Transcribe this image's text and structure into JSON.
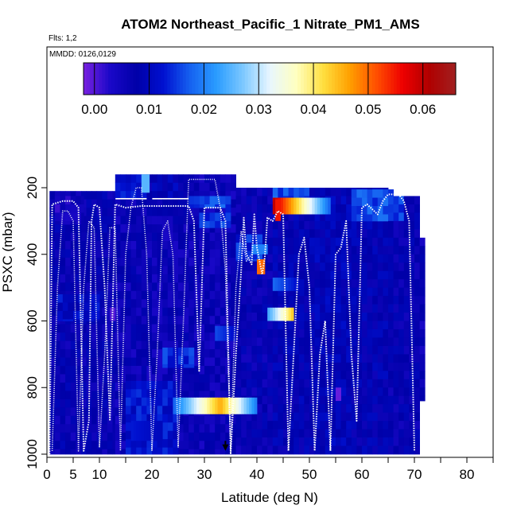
{
  "chart_data": {
    "type": "heatmap",
    "title": "ATOM2 Northeast_Pacific_1 Nitrate_PM1_AMS",
    "flights_label": "Flts: 1,2",
    "date_label": "MMDD: 0126,0129",
    "xlabel": "Latitude (deg N)",
    "ylabel": "PSXC (mbar)",
    "xlim": [
      0,
      85
    ],
    "ylim": [
      1000,
      0
    ],
    "x_ticks": [
      0,
      5,
      10,
      20,
      30,
      40,
      50,
      60,
      70,
      80
    ],
    "x_tick_labels": [
      "0",
      "5",
      "10",
      "20",
      "30",
      "40",
      "50",
      "60",
      "70",
      "80"
    ],
    "y_ticks": [
      200,
      400,
      600,
      800,
      1000
    ],
    "y_tick_labels": [
      "200",
      "400",
      "600",
      "800",
      "1000"
    ],
    "colorbar": {
      "range": [
        -0.002,
        0.066
      ],
      "ticks": [
        0.0,
        0.01,
        0.02,
        0.03,
        0.04,
        0.05,
        0.06
      ],
      "tick_labels": [
        "0.00",
        "0.01",
        "0.02",
        "0.03",
        "0.04",
        "0.05",
        "0.06"
      ],
      "stops": [
        "#7a22e0",
        "#1a08c8",
        "#0000a8",
        "#0010d0",
        "#1560f0",
        "#2a9cff",
        "#7cc8ff",
        "#e8f6ff",
        "#ffffc0",
        "#ffe040",
        "#ffa000",
        "#ff5000",
        "#ee0000",
        "#b00000",
        "#a02020"
      ]
    },
    "heatmap": {
      "x_bin": 1,
      "p_bin": 25,
      "background": 0.006,
      "columns": [
        {
          "x0": 0.5,
          "x1": 13,
          "p0": 210,
          "p1": 1000,
          "v": 0.007
        },
        {
          "x0": 1.5,
          "x1": 7,
          "p0": 225,
          "p1": 310,
          "v": 0.004
        },
        {
          "x0": 2,
          "x1": 10,
          "p0": 520,
          "p1": 600,
          "v": 0.011
        },
        {
          "x0": 13,
          "x1": 20,
          "p0": 160,
          "p1": 1000,
          "v": 0.006
        },
        {
          "x0": 13,
          "x1": 19,
          "p0": 160,
          "p1": 230,
          "v": 0.013
        },
        {
          "x0": 20,
          "x1": 29,
          "p0": 160,
          "p1": 1000,
          "v": 0.006
        },
        {
          "x0": 20,
          "x1": 27,
          "p0": 160,
          "p1": 230,
          "v": 0.009
        },
        {
          "x0": 15,
          "x1": 25,
          "p0": 780,
          "p1": 1000,
          "v": 0.012
        },
        {
          "x0": 22,
          "x1": 28,
          "p0": 680,
          "p1": 740,
          "v": 0.014
        },
        {
          "x0": 29,
          "x1": 36,
          "p0": 160,
          "p1": 1000,
          "v": 0.006
        },
        {
          "x0": 29,
          "x1": 35,
          "p0": 225,
          "p1": 320,
          "v": 0.014
        },
        {
          "x0": 27,
          "x1": 34,
          "p0": 225,
          "p1": 260,
          "v": 0.016
        },
        {
          "x0": 36,
          "x1": 43,
          "p0": 200,
          "p1": 1000,
          "v": 0.007
        },
        {
          "x0": 36,
          "x1": 41,
          "p0": 340,
          "p1": 420,
          "v": 0.014
        },
        {
          "x0": 43,
          "x1": 51,
          "p0": 200,
          "p1": 1000,
          "v": 0.008
        },
        {
          "x0": 43,
          "x1": 50,
          "p0": 200,
          "p1": 240,
          "v": 0.016
        },
        {
          "x0": 51,
          "x1": 58,
          "p0": 200,
          "p1": 1000,
          "v": 0.009
        },
        {
          "x0": 58,
          "x1": 65,
          "p0": 200,
          "p1": 1000,
          "v": 0.008
        },
        {
          "x0": 58,
          "x1": 66,
          "p0": 205,
          "p1": 300,
          "v": 0.016
        },
        {
          "x0": 65,
          "x1": 71,
          "p0": 225,
          "p1": 1000,
          "v": 0.007
        },
        {
          "x0": 65,
          "x1": 68,
          "p0": 225,
          "p1": 300,
          "v": 0.015
        },
        {
          "x0": 71,
          "x1": 72,
          "p0": 350,
          "p1": 840,
          "v": 0.006
        }
      ],
      "features": [
        {
          "x0": 43,
          "x1": 54,
          "p0": 230,
          "p1": 280,
          "v0": 0.06,
          "v1": 0.018
        },
        {
          "x0": 24,
          "x1": 33,
          "p0": 830,
          "p1": 880,
          "v0": 0.018,
          "v1": 0.045
        },
        {
          "x0": 33,
          "x1": 40,
          "p0": 830,
          "p1": 880,
          "v0": 0.045,
          "v1": 0.02
        },
        {
          "x0": 42,
          "x1": 47,
          "p0": 560,
          "p1": 600,
          "v0": 0.024,
          "v1": 0.043
        },
        {
          "x0": 40,
          "x1": 41.5,
          "p0": 415,
          "p1": 460,
          "v0": 0.05,
          "v1": 0.05
        },
        {
          "x0": 43.5,
          "x1": 44.5,
          "p0": 235,
          "p1": 300,
          "v0": 0.055,
          "v1": 0.055
        },
        {
          "x0": 43,
          "x1": 48,
          "p0": 470,
          "p1": 510,
          "v0": 0.018,
          "v1": 0.012
        },
        {
          "x0": 32,
          "x1": 36,
          "p0": 615,
          "p1": 660,
          "v0": 0.016,
          "v1": 0.012
        },
        {
          "x0": 39,
          "x1": 42,
          "p0": 370,
          "p1": 400,
          "v0": 0.02,
          "v1": 0.02
        },
        {
          "x0": 55,
          "x1": 56,
          "p0": 800,
          "p1": 840,
          "v0": -0.001,
          "v1": -0.001
        },
        {
          "x0": 12,
          "x1": 13,
          "p0": 560,
          "p1": 600,
          "v0": 0.0,
          "v1": 0.0
        },
        {
          "x0": 18,
          "x1": 19.5,
          "p0": 160,
          "p1": 215,
          "v0": 0.025,
          "v1": 0.025
        },
        {
          "x0": 16,
          "x1": 22,
          "p0": 900,
          "p1": 960,
          "v0": 0.013,
          "v1": 0.01
        }
      ]
    },
    "flight_tracks": [
      {
        "name": "flight-1",
        "points": [
          [
            0.5,
            1000
          ],
          [
            1,
            250
          ],
          [
            3,
            240
          ],
          [
            5,
            240
          ],
          [
            6,
            260
          ],
          [
            7,
            990
          ],
          [
            8,
            900
          ],
          [
            8.5,
            300
          ],
          [
            9,
            250
          ],
          [
            10,
            260
          ],
          [
            11,
            500
          ],
          [
            12,
            900
          ],
          [
            13,
            250
          ],
          [
            15,
            260
          ],
          [
            18,
            255
          ],
          [
            22,
            255
          ],
          [
            25,
            255
          ],
          [
            27,
            255
          ],
          [
            28,
            300
          ],
          [
            29,
            750
          ],
          [
            30,
            260
          ],
          [
            33,
            260
          ],
          [
            34,
            300
          ],
          [
            35,
            1000
          ],
          [
            36,
            700
          ],
          [
            37,
            450
          ],
          [
            37.5,
            290
          ],
          [
            38,
            400
          ],
          [
            39,
            430
          ],
          [
            39.5,
            280
          ],
          [
            40,
            380
          ],
          [
            41,
            460
          ],
          [
            41.5,
            410
          ],
          [
            42,
            290
          ],
          [
            43,
            300
          ],
          [
            44,
            270
          ],
          [
            45,
            280
          ],
          [
            46,
            990
          ],
          [
            47,
            700
          ],
          [
            48,
            400
          ],
          [
            49,
            350
          ],
          [
            50,
            500
          ],
          [
            51,
            990
          ],
          [
            52,
            700
          ],
          [
            53,
            600
          ],
          [
            54,
            990
          ],
          [
            55,
            400
          ],
          [
            56,
            380
          ],
          [
            57,
            300
          ],
          [
            58,
            700
          ],
          [
            59,
            900
          ],
          [
            60,
            260
          ],
          [
            61,
            250
          ],
          [
            63,
            280
          ],
          [
            64,
            240
          ],
          [
            65,
            220
          ],
          [
            67,
            220
          ],
          [
            68,
            240
          ],
          [
            69,
            300
          ],
          [
            70,
            990
          ]
        ]
      },
      {
        "name": "flight-2",
        "points": [
          [
            1,
            990
          ],
          [
            2,
            500
          ],
          [
            3,
            270
          ],
          [
            4,
            270
          ],
          [
            5,
            300
          ],
          [
            6,
            990
          ],
          [
            7,
            500
          ],
          [
            8,
            300
          ],
          [
            9,
            320
          ],
          [
            10,
            980
          ],
          [
            11,
            700
          ],
          [
            12,
            320
          ],
          [
            13,
            320
          ],
          [
            14,
            990
          ],
          [
            15,
            400
          ],
          [
            16,
            260
          ],
          [
            17,
            200
          ],
          [
            18,
            200
          ],
          [
            19,
            400
          ],
          [
            20,
            990
          ],
          [
            21,
            700
          ],
          [
            22,
            330
          ],
          [
            23,
            300
          ],
          [
            24,
            400
          ],
          [
            25,
            980
          ],
          [
            26,
            600
          ],
          [
            27,
            175
          ],
          [
            30,
            175
          ],
          [
            32,
            175
          ],
          [
            33,
            260
          ],
          [
            34,
            450
          ],
          [
            35,
            990
          ],
          [
            36,
            500
          ],
          [
            37,
            330
          ],
          [
            38,
            420
          ],
          [
            39,
            400
          ]
        ]
      }
    ],
    "marker": {
      "x": 34,
      "p": 985
    }
  }
}
